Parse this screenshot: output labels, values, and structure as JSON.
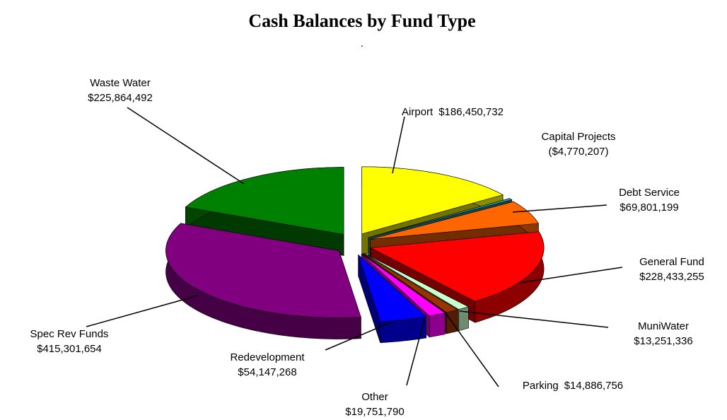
{
  "chart_data": {
    "type": "pie3d",
    "title": "Cash Balances by Fund Type",
    "subtitle": ".",
    "categories": [
      "Airport",
      "Capital Projects",
      "Debt Service",
      "General Fund",
      "MuniWater",
      "Parking",
      "Other",
      "Redevelopment",
      "Spec Rev Funds",
      "Waste Water"
    ],
    "values": [
      186450732,
      -4770207,
      69801199,
      228433255,
      13251336,
      14886756,
      19751790,
      54147268,
      415301654,
      225864492
    ],
    "value_labels": [
      "$186,450,732",
      "($4,770,207)",
      "$69,801,199",
      "$228,433,255",
      "$13,251,336",
      "$14,886,756",
      "$19,751,790",
      "$54,147,268",
      "$415,301,654",
      "$225,864,492"
    ],
    "colors": [
      "#ffff00",
      "#339999",
      "#ff6600",
      "#ff0000",
      "#ccffcc",
      "#993300",
      "#ff00ff",
      "#0000ff",
      "#800080",
      "#008000"
    ]
  }
}
